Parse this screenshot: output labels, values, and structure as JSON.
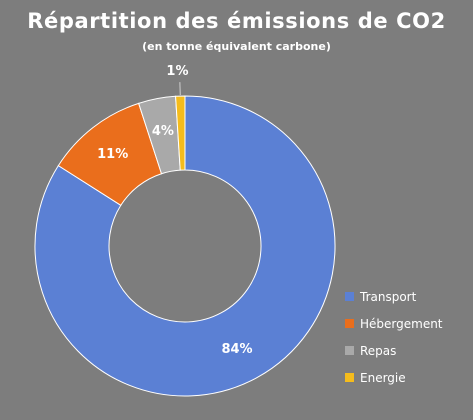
{
  "chart_data": {
    "type": "pie",
    "variant": "donut",
    "title": "Répartition des émissions de CO2",
    "subtitle": "(en tonne équivalent carbone)",
    "categories": [
      "Transport",
      "Hébergement",
      "Repas",
      "Energie"
    ],
    "values": [
      84,
      11,
      4,
      1
    ],
    "labels": [
      "84%",
      "11%",
      "4%",
      "1%"
    ],
    "colors": [
      "#5b80d4",
      "#ea6e1c",
      "#a9a9a9",
      "#f5bc1c"
    ],
    "legend_position": "bottom-right"
  }
}
